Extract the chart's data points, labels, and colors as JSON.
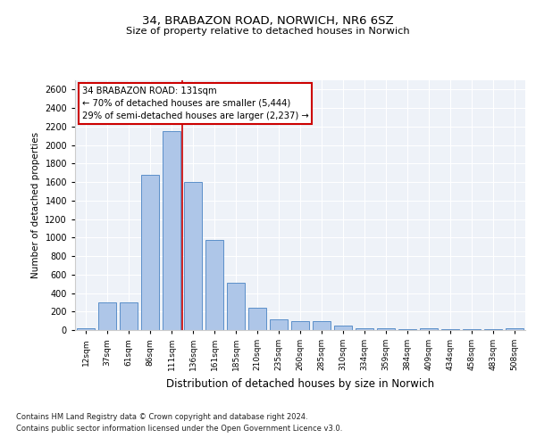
{
  "title1": "34, BRABAZON ROAD, NORWICH, NR6 6SZ",
  "title2": "Size of property relative to detached houses in Norwich",
  "xlabel": "Distribution of detached houses by size in Norwich",
  "ylabel": "Number of detached properties",
  "categories": [
    "12sqm",
    "37sqm",
    "61sqm",
    "86sqm",
    "111sqm",
    "136sqm",
    "161sqm",
    "185sqm",
    "210sqm",
    "235sqm",
    "260sqm",
    "285sqm",
    "310sqm",
    "334sqm",
    "359sqm",
    "384sqm",
    "409sqm",
    "434sqm",
    "458sqm",
    "483sqm",
    "508sqm"
  ],
  "values": [
    20,
    300,
    300,
    1680,
    2150,
    1600,
    970,
    510,
    245,
    120,
    100,
    95,
    45,
    20,
    15,
    10,
    15,
    10,
    5,
    5,
    20
  ],
  "bar_color": "#aec6e8",
  "bar_edge_color": "#5b8fc9",
  "vline_color": "#cc0000",
  "annotation_box_text": "34 BRABAZON ROAD: 131sqm\n← 70% of detached houses are smaller (5,444)\n29% of semi-detached houses are larger (2,237) →",
  "ylim": [
    0,
    2700
  ],
  "yticks": [
    0,
    200,
    400,
    600,
    800,
    1000,
    1200,
    1400,
    1600,
    1800,
    2000,
    2200,
    2400,
    2600
  ],
  "footer1": "Contains HM Land Registry data © Crown copyright and database right 2024.",
  "footer2": "Contains public sector information licensed under the Open Government Licence v3.0.",
  "bg_color": "#eef2f8",
  "fig_bg_color": "#ffffff"
}
